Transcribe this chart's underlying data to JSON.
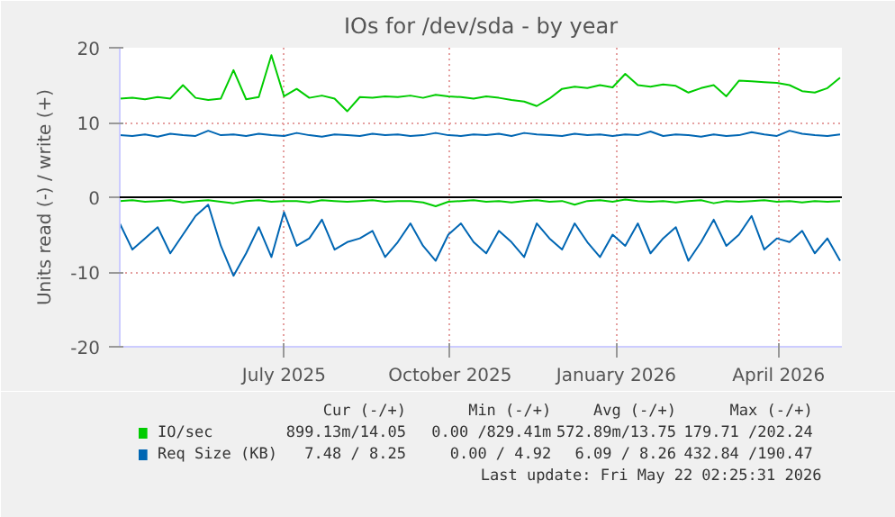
{
  "chart_data": {
    "type": "line",
    "title": "IOs for /dev/sda - by year",
    "ylabel": "Units read (-) / write (+)",
    "x": [
      "2025-04-01",
      "2025-04-08",
      "2025-04-15",
      "2025-04-22",
      "2025-04-29",
      "2025-05-06",
      "2025-05-13",
      "2025-05-20",
      "2025-05-27",
      "2025-06-03",
      "2025-06-10",
      "2025-06-17",
      "2025-06-24",
      "2025-07-01",
      "2025-07-08",
      "2025-07-15",
      "2025-07-22",
      "2025-07-29",
      "2025-08-05",
      "2025-08-12",
      "2025-08-19",
      "2025-08-26",
      "2025-09-02",
      "2025-09-09",
      "2025-09-16",
      "2025-09-23",
      "2025-09-30",
      "2025-10-07",
      "2025-10-14",
      "2025-10-21",
      "2025-10-28",
      "2025-11-04",
      "2025-11-11",
      "2025-11-18",
      "2025-11-25",
      "2025-12-02",
      "2025-12-09",
      "2025-12-16",
      "2025-12-23",
      "2025-12-30",
      "2026-01-06",
      "2026-01-13",
      "2026-01-20",
      "2026-01-27",
      "2026-02-03",
      "2026-02-10",
      "2026-02-17",
      "2026-02-24",
      "2026-03-03",
      "2026-03-10",
      "2026-03-17",
      "2026-03-24",
      "2026-03-31",
      "2026-04-07",
      "2026-04-14",
      "2026-04-21",
      "2026-04-28",
      "2026-05-05"
    ],
    "series": [
      {
        "name": "IO/sec",
        "color": "#00cc00",
        "values": [
          13.2,
          13.3,
          13.1,
          13.4,
          13.2,
          15.0,
          13.3,
          13.0,
          13.2,
          17.0,
          13.1,
          13.4,
          19.0,
          13.5,
          14.5,
          13.3,
          13.6,
          13.2,
          11.5,
          13.4,
          13.3,
          13.5,
          13.4,
          13.6,
          13.3,
          13.7,
          13.5,
          13.4,
          13.2,
          13.5,
          13.3,
          13.0,
          12.8,
          12.2,
          13.2,
          14.5,
          14.8,
          14.6,
          15.0,
          14.7,
          16.5,
          15.0,
          14.8,
          15.1,
          14.9,
          14.0,
          14.6,
          15.0,
          13.5,
          15.6,
          15.5,
          15.4,
          15.3,
          15.0,
          14.2,
          14.0,
          14.6,
          16.0
        ]
      },
      {
        "color": "#00cc00",
        "values": [
          -0.5,
          -0.4,
          -0.6,
          -0.5,
          -0.4,
          -0.7,
          -0.5,
          -0.4,
          -0.6,
          -0.8,
          -0.5,
          -0.4,
          -0.6,
          -0.5,
          -0.5,
          -0.7,
          -0.4,
          -0.5,
          -0.6,
          -0.5,
          -0.4,
          -0.6,
          -0.5,
          -0.5,
          -0.7,
          -1.2,
          -0.6,
          -0.5,
          -0.4,
          -0.6,
          -0.5,
          -0.7,
          -0.5,
          -0.4,
          -0.6,
          -0.5,
          -1.0,
          -0.5,
          -0.4,
          -0.6,
          -0.3,
          -0.5,
          -0.6,
          -0.5,
          -0.7,
          -0.5,
          -0.4,
          -0.8,
          -0.5,
          -0.6,
          -0.5,
          -0.4,
          -0.6,
          -0.5,
          -0.7,
          -0.5,
          -0.6,
          -0.5
        ]
      },
      {
        "name": "Req Size (KB)",
        "color": "#0066b3",
        "values": [
          8.3,
          8.2,
          8.4,
          8.1,
          8.5,
          8.3,
          8.2,
          8.9,
          8.3,
          8.4,
          8.2,
          8.5,
          8.3,
          8.2,
          8.6,
          8.3,
          8.1,
          8.4,
          8.3,
          8.2,
          8.5,
          8.3,
          8.4,
          8.2,
          8.3,
          8.6,
          8.3,
          8.2,
          8.4,
          8.3,
          8.5,
          8.2,
          8.6,
          8.4,
          8.3,
          8.2,
          8.5,
          8.3,
          8.4,
          8.2,
          8.4,
          8.3,
          8.8,
          8.2,
          8.4,
          8.3,
          8.1,
          8.4,
          8.2,
          8.3,
          8.7,
          8.4,
          8.2,
          8.9,
          8.5,
          8.3,
          8.2,
          8.4
        ]
      },
      {
        "color": "#0066b3",
        "values": [
          -3.5,
          -7.0,
          -5.5,
          -4.0,
          -7.5,
          -5.0,
          -2.5,
          -1.0,
          -6.5,
          -10.5,
          -7.5,
          -4.0,
          -8.0,
          -2.0,
          -6.5,
          -5.5,
          -3.0,
          -7.0,
          -6.0,
          -5.5,
          -4.5,
          -8.0,
          -6.0,
          -3.5,
          -6.5,
          -8.5,
          -5.0,
          -3.5,
          -6.0,
          -7.5,
          -4.5,
          -6.0,
          -8.0,
          -3.5,
          -5.5,
          -7.0,
          -3.5,
          -6.0,
          -8.0,
          -5.0,
          -6.5,
          -3.5,
          -7.5,
          -5.5,
          -4.0,
          -8.5,
          -6.0,
          -3.0,
          -6.5,
          -5.0,
          -2.5,
          -7.0,
          -5.5,
          -6.0,
          -4.5,
          -7.5,
          -5.5,
          -8.5
        ]
      }
    ],
    "xlim": [
      "2025-04-01",
      "2026-05-06"
    ],
    "xticks": [
      {
        "value": "2025-07-01",
        "label": "July 2025"
      },
      {
        "value": "2025-10-01",
        "label": "October 2025"
      },
      {
        "value": "2026-01-01",
        "label": "January 2026"
      },
      {
        "value": "2026-04-01",
        "label": "April 2026"
      }
    ],
    "ylim": [
      -20,
      20
    ],
    "yticks": [
      -20,
      -10,
      0,
      10,
      20
    ],
    "ref_lines": [
      {
        "axis": "y",
        "value": 0,
        "color": "#000000"
      }
    ],
    "grid": true,
    "legend": "bottom",
    "annotations": [
      "Cur (-/+)",
      "Min (-/+)",
      "Avg (-/+)",
      "Max (-/+)",
      "899.13m/14.05",
      "0.00 /829.41m",
      "572.89m/13.75",
      "179.71 /202.24",
      "7.48 / 8.25",
      "0.00 / 4.92",
      "6.09 / 8.26",
      "432.84 /190.47",
      "Last update: Fri May 22 02:25:31 2026"
    ]
  }
}
